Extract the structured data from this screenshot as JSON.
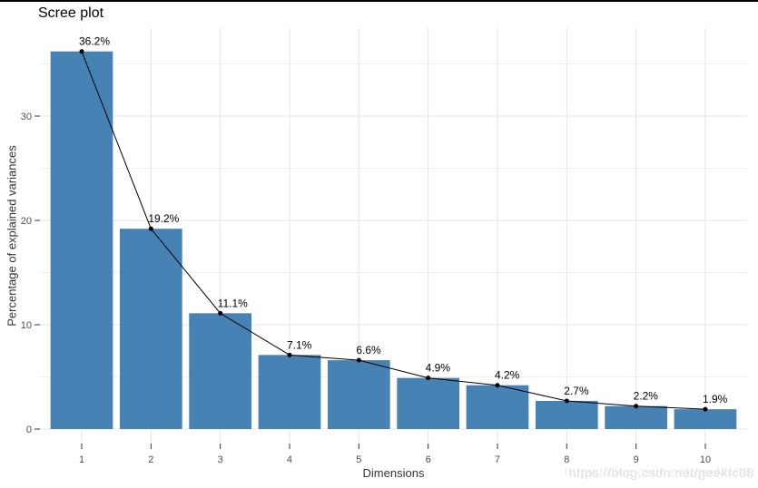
{
  "window": {
    "top_border_color": "#000000"
  },
  "watermark": {
    "text": "https://blog.csdn.net/geekfc08"
  },
  "chart_data": {
    "type": "bar",
    "overlay": "line",
    "title": "Scree plot",
    "xlabel": "Dimensions",
    "ylabel": "Percentage of explained variances",
    "categories": [
      "1",
      "2",
      "3",
      "4",
      "5",
      "6",
      "7",
      "8",
      "9",
      "10"
    ],
    "values": [
      36.2,
      19.2,
      11.1,
      7.1,
      6.6,
      4.9,
      4.2,
      2.7,
      2.2,
      1.9
    ],
    "point_labels": [
      "36.2%",
      "19.2%",
      "11.1%",
      "7.1%",
      "6.6%",
      "4.9%",
      "4.2%",
      "2.7%",
      "2.2%",
      "1.9%"
    ],
    "ylim": [
      0,
      38.5
    ],
    "yticks": [
      0,
      10,
      20,
      30
    ],
    "yticks_minor": [
      5,
      15,
      25,
      35
    ],
    "grid": "on",
    "legend": "none",
    "bar_color": "#4682B4",
    "line_color": "#000000",
    "point_color": "#000000",
    "grid_major_color": "#e4e4e4",
    "grid_minor_color": "#f0f0f0",
    "tick_color": "#333333",
    "tick_label_color": "#4d4d4d",
    "value_label_color": "#000000",
    "background": "#ffffff"
  }
}
